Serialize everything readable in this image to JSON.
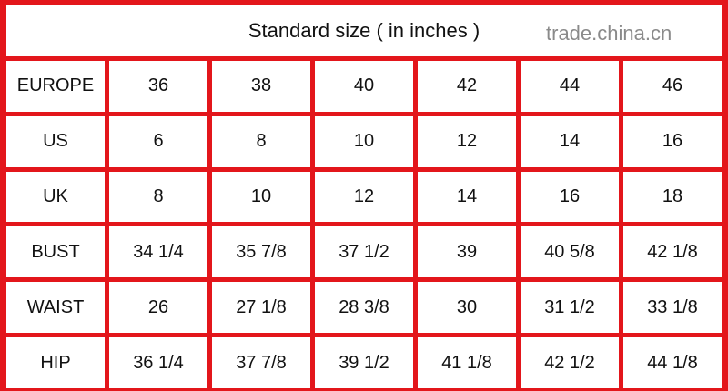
{
  "title": "Standard size ( in inches )",
  "rows": [
    {
      "label": "EUROPE",
      "values": [
        "36",
        "38",
        "40",
        "42",
        "44",
        "46"
      ]
    },
    {
      "label": "US",
      "values": [
        "6",
        "8",
        "10",
        "12",
        "14",
        "16"
      ]
    },
    {
      "label": "UK",
      "values": [
        "8",
        "10",
        "12",
        "14",
        "16",
        "18"
      ]
    },
    {
      "label": "BUST",
      "values": [
        "34 1/4",
        "35 7/8",
        "37 1/2",
        "39",
        "40 5/8",
        "42 1/8"
      ]
    },
    {
      "label": "WAIST",
      "values": [
        "26",
        "27 1/8",
        "28 3/8",
        "30",
        "31 1/2",
        "33 1/8"
      ]
    },
    {
      "label": "HIP",
      "values": [
        "36 1/4",
        "37 7/8",
        "39 1/2",
        "41 1/8",
        "42 1/2",
        "44 1/8"
      ]
    }
  ],
  "watermark": "trade.china.cn",
  "colors": {
    "grid": "#e3161b"
  }
}
